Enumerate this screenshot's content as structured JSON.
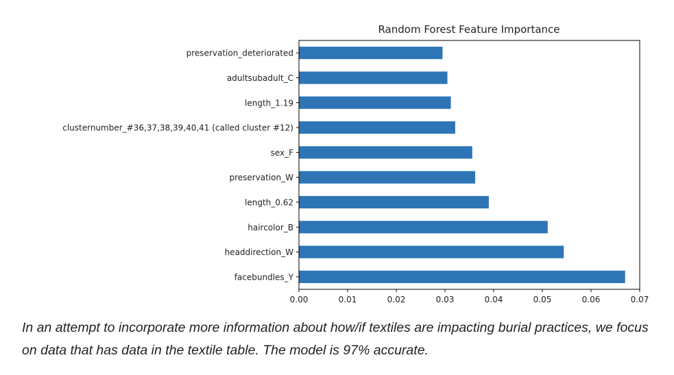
{
  "chart_data": {
    "type": "bar",
    "orientation": "horizontal",
    "title": "Random Forest Feature Importance",
    "xlabel": "",
    "ylabel": "",
    "categories": [
      "preservation_deteriorated",
      "adultsubadult_C",
      "length_1.19",
      "clusternumber_#36,37,38,39,40,41 (called cluster #12)",
      "sex_F",
      "preservation_W",
      "length_0.62",
      "haircolor_B",
      "headdirection_W",
      "facebundles_Y"
    ],
    "values": [
      0.0295,
      0.0305,
      0.0312,
      0.0321,
      0.0356,
      0.0362,
      0.039,
      0.0511,
      0.0544,
      0.067
    ],
    "xlim": [
      0.0,
      0.07
    ],
    "xticks": [
      "0.00",
      "0.01",
      "0.02",
      "0.03",
      "0.04",
      "0.05",
      "0.06",
      "0.07"
    ],
    "grid": false,
    "bar_color": "#2e75b6"
  },
  "caption": "In an attempt to incorporate more information about how/if textiles are impacting burial practices, we focus on data that has data in the textile table. The model is 97% accurate."
}
